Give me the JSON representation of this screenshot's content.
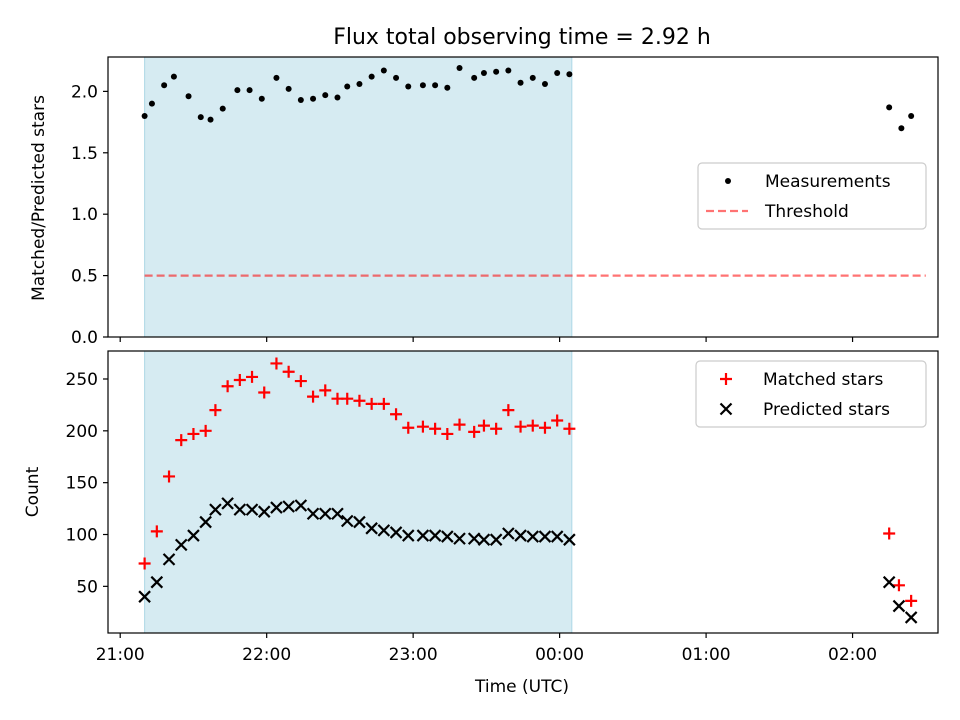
{
  "figure": {
    "title": "Flux total observing time = 2.92 h",
    "xlabel": "Time (UTC)"
  },
  "colors": {
    "shade": "#add8e6",
    "threshold": "#ff0000",
    "matched": "#ff0000",
    "predicted": "#000000",
    "measurements": "#000000"
  },
  "chart_data": [
    {
      "type": "scatter",
      "panel": "top",
      "ylabel": "Matched/Predicted stars",
      "xlim": [
        "20:55",
        "02:35"
      ],
      "ylim": [
        0,
        2.28
      ],
      "yticks": [
        0.0,
        0.5,
        1.0,
        1.5,
        2.0
      ],
      "ytick_labels": [
        "0.0",
        "0.5",
        "1.0",
        "1.5",
        "2.0"
      ],
      "xticks": [
        "21:00",
        "22:00",
        "23:00",
        "00:00",
        "01:00",
        "02:00"
      ],
      "shaded_span": [
        "21:10",
        "00:05"
      ],
      "legend_position": "center-right",
      "series": [
        {
          "name": "Measurements",
          "kind": "points",
          "x": [
            "21:10",
            "21:13",
            "21:18",
            "21:22",
            "21:28",
            "21:33",
            "21:37",
            "21:42",
            "21:48",
            "21:53",
            "21:58",
            "22:04",
            "22:09",
            "22:14",
            "22:19",
            "22:24",
            "22:29",
            "22:33",
            "22:38",
            "22:43",
            "22:48",
            "22:53",
            "22:58",
            "23:04",
            "23:09",
            "23:14",
            "23:19",
            "23:25",
            "23:29",
            "23:34",
            "23:39",
            "23:44",
            "23:49",
            "23:54",
            "23:59",
            "00:04",
            "02:15",
            "02:20",
            "02:24"
          ],
          "y": [
            1.8,
            1.9,
            2.05,
            2.12,
            1.96,
            1.79,
            1.77,
            1.86,
            2.01,
            2.01,
            1.94,
            2.11,
            2.02,
            1.93,
            1.94,
            1.97,
            1.95,
            2.04,
            2.06,
            2.12,
            2.17,
            2.11,
            2.04,
            2.05,
            2.05,
            2.03,
            2.19,
            2.11,
            2.15,
            2.16,
            2.17,
            2.07,
            2.11,
            2.06,
            2.15,
            2.14,
            1.87,
            1.7,
            1.8
          ]
        },
        {
          "name": "Threshold",
          "kind": "dashed-line",
          "x": [
            "21:10",
            "02:30"
          ],
          "y": [
            0.5,
            0.5
          ]
        }
      ]
    },
    {
      "type": "scatter",
      "panel": "bottom",
      "ylabel": "Count",
      "xlabel": "Time (UTC)",
      "xlim": [
        "20:55",
        "02:35"
      ],
      "ylim": [
        5,
        277
      ],
      "yticks": [
        50,
        100,
        150,
        200,
        250
      ],
      "xticks": [
        "21:00",
        "22:00",
        "23:00",
        "00:00",
        "01:00",
        "02:00"
      ],
      "xtick_labels": [
        "21:00",
        "22:00",
        "23:00",
        "00:00",
        "01:00",
        "02:00"
      ],
      "shaded_span": [
        "21:10",
        "00:05"
      ],
      "legend_position": "upper-right",
      "series": [
        {
          "name": "Matched stars",
          "marker": "plus",
          "x": [
            "21:10",
            "21:15",
            "21:20",
            "21:25",
            "21:30",
            "21:35",
            "21:39",
            "21:44",
            "21:49",
            "21:54",
            "21:59",
            "22:04",
            "22:09",
            "22:14",
            "22:19",
            "22:24",
            "22:29",
            "22:33",
            "22:38",
            "22:43",
            "22:48",
            "22:53",
            "22:58",
            "23:04",
            "23:09",
            "23:14",
            "23:19",
            "23:25",
            "23:29",
            "23:34",
            "23:39",
            "23:44",
            "23:49",
            "23:54",
            "23:59",
            "00:04",
            "02:15",
            "02:19",
            "02:24"
          ],
          "y": [
            72,
            103,
            156,
            191,
            197,
            200,
            220,
            243,
            249,
            252,
            237,
            265,
            257,
            248,
            233,
            239,
            231,
            231,
            229,
            226,
            226,
            216,
            203,
            204,
            202,
            197,
            206,
            199,
            205,
            202,
            220,
            204,
            205,
            203,
            210,
            202,
            101,
            51,
            36
          ]
        },
        {
          "name": "Predicted stars",
          "marker": "x",
          "x": [
            "21:10",
            "21:15",
            "21:20",
            "21:25",
            "21:30",
            "21:35",
            "21:39",
            "21:44",
            "21:49",
            "21:54",
            "21:59",
            "22:04",
            "22:09",
            "22:14",
            "22:19",
            "22:24",
            "22:29",
            "22:33",
            "22:38",
            "22:43",
            "22:48",
            "22:53",
            "22:58",
            "23:04",
            "23:09",
            "23:14",
            "23:19",
            "23:25",
            "23:29",
            "23:34",
            "23:39",
            "23:44",
            "23:49",
            "23:54",
            "23:59",
            "00:04",
            "02:15",
            "02:19",
            "02:24"
          ],
          "y": [
            40,
            54,
            76,
            90,
            99,
            112,
            124,
            130,
            124,
            124,
            122,
            126,
            127,
            128,
            120,
            120,
            120,
            113,
            112,
            106,
            104,
            102,
            99,
            99,
            99,
            98,
            96,
            96,
            95,
            95,
            101,
            99,
            98,
            98,
            98,
            95,
            54,
            31,
            20
          ]
        }
      ]
    }
  ]
}
